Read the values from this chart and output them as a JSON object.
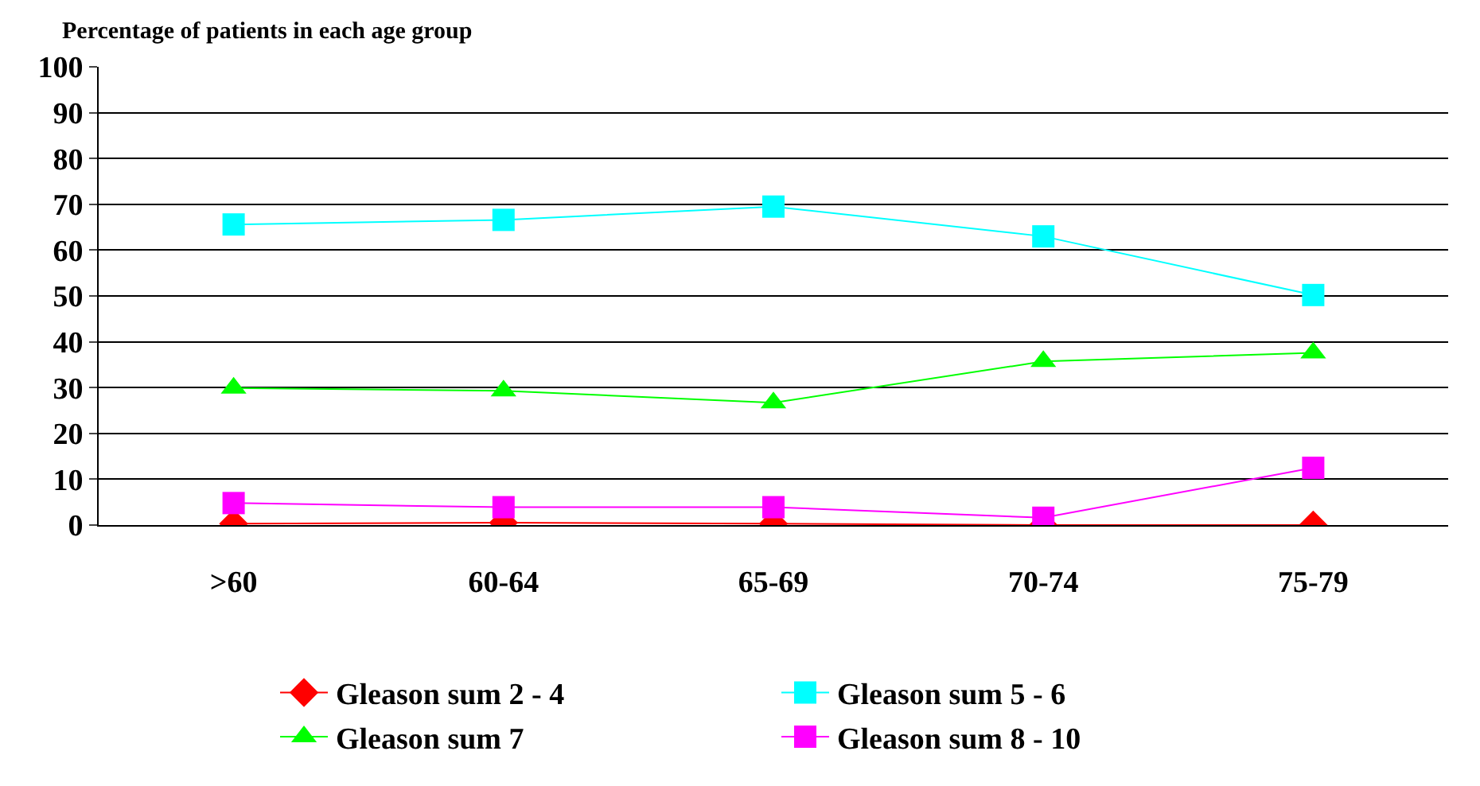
{
  "chart_data": {
    "type": "line",
    "ylabel": "Percentage of patients in each age group",
    "categories": [
      ">60",
      "60-64",
      "65-69",
      "70-74",
      "75-79"
    ],
    "ylim": [
      0,
      100
    ],
    "yticks": [
      0,
      10,
      20,
      30,
      40,
      50,
      60,
      70,
      80,
      90,
      100
    ],
    "grid": "y",
    "legend": "bottom",
    "series": [
      {
        "name": "Gleason sum 2 - 4",
        "color": "#ff0000",
        "marker": "diamond",
        "values": [
          0.3,
          0.5,
          0.3,
          0,
          0
        ]
      },
      {
        "name": "Gleason sum 5 - 6",
        "color": "#00ffff",
        "marker": "square",
        "values": [
          65.6,
          66.6,
          69.5,
          63,
          50.2
        ]
      },
      {
        "name": "Gleason sum 7",
        "color": "#00ff00",
        "marker": "triangle",
        "values": [
          29.9,
          29.3,
          26.7,
          35.7,
          37.6
        ]
      },
      {
        "name": "Gleason sum 8 - 10",
        "color": "#ff00ff",
        "marker": "square",
        "values": [
          4.8,
          3.9,
          3.9,
          1.6,
          12.5
        ]
      }
    ]
  }
}
